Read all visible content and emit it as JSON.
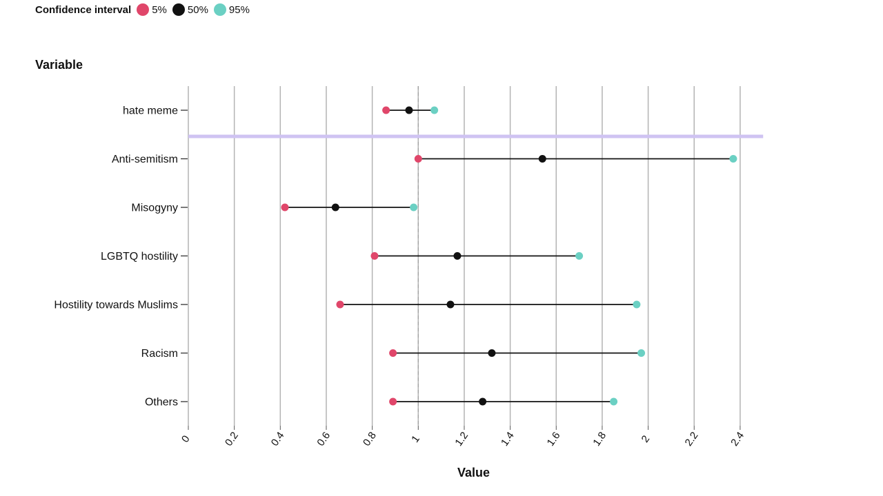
{
  "chart_data": {
    "type": "dot-range",
    "legend": {
      "title": "Confidence interval",
      "items": [
        {
          "label": "5%",
          "color": "#e0466a"
        },
        {
          "label": "50%",
          "color": "#111111"
        },
        {
          "label": "95%",
          "color": "#6bd0c3"
        }
      ]
    },
    "ylabel": "Variable",
    "xlabel": "Value",
    "xlim": [
      0,
      2.5
    ],
    "xticks": [
      "0",
      "0.2",
      "0.4",
      "0.6",
      "0.8",
      "1",
      "1.2",
      "1.4",
      "1.6",
      "1.8",
      "2",
      "2.2",
      "2.4"
    ],
    "reference_line": 1,
    "grid": true,
    "separator_color": "#cfc3f2",
    "categories": [
      "hate meme",
      "Anti-semitism",
      "Misogyny",
      "LGBTQ hostility",
      "Hostility towards Muslims",
      "Racism",
      "Others"
    ],
    "series": [
      {
        "name": "5%",
        "values": [
          0.86,
          1.0,
          0.42,
          0.81,
          0.66,
          0.89,
          0.89
        ]
      },
      {
        "name": "50%",
        "values": [
          0.96,
          1.54,
          0.64,
          1.17,
          1.14,
          1.32,
          1.28
        ]
      },
      {
        "name": "95%",
        "values": [
          1.07,
          2.37,
          0.98,
          1.7,
          1.95,
          1.97,
          1.85
        ]
      }
    ]
  }
}
